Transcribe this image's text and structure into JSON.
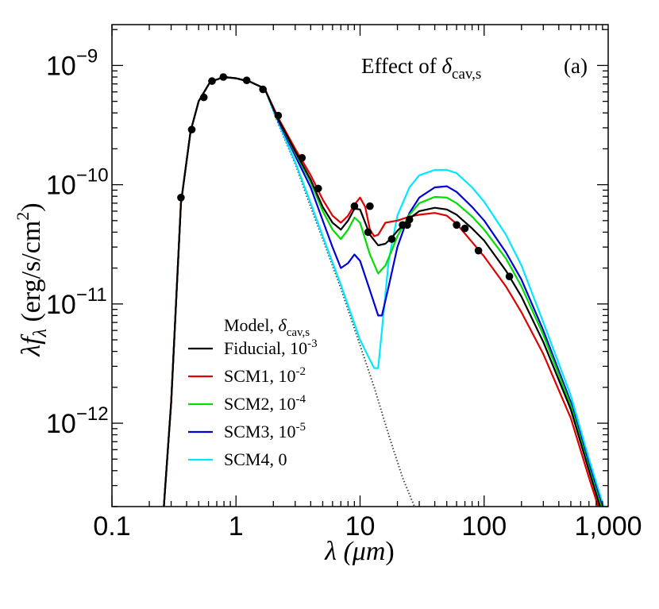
{
  "chart_data": {
    "type": "line",
    "title": "Effect of δcav,s",
    "panel_label": "(a)",
    "xlabel": {
      "prefix": "λ (",
      "unit": "μm",
      "suffix": ")"
    },
    "ylabel": {
      "lambda": "λ",
      "f": "f",
      "f_sub": "λ",
      "units": " (erg/s/cm",
      "units_sup": "2",
      "units_close": ")"
    },
    "x_scale": "log",
    "y_scale": "log",
    "xlim": [
      0.1,
      1000
    ],
    "ylim": [
      2e-13,
      2.2e-09
    ],
    "x_ticks": [
      {
        "value": 0.1,
        "label": "0.1"
      },
      {
        "value": 1,
        "label": "1"
      },
      {
        "value": 10,
        "label": "10"
      },
      {
        "value": 100,
        "label": "100"
      },
      {
        "value": 1000,
        "label": "1,000"
      }
    ],
    "y_ticks": [
      {
        "value": 1e-09,
        "base": "10",
        "exp": "−9"
      },
      {
        "value": 1e-10,
        "base": "10",
        "exp": "−10"
      },
      {
        "value": 1e-11,
        "base": "10",
        "exp": "−11"
      },
      {
        "value": 1e-12,
        "base": "10",
        "exp": "−12"
      }
    ],
    "title_parts": {
      "text": "Effect of ",
      "symbol": "δ",
      "sub": "cav,s"
    },
    "legend": {
      "position": "lower-center",
      "header": {
        "text": "Model, ",
        "symbol": "δ",
        "sub": "cav,s"
      },
      "entries": [
        {
          "name": "Fiducial",
          "base": "10",
          "exp": "-3",
          "color": "#000000"
        },
        {
          "name": "SCM1",
          "base": "10",
          "exp": "-2",
          "color": "#e00000"
        },
        {
          "name": "SCM2",
          "base": "10",
          "exp": "-4",
          "color": "#00dd00"
        },
        {
          "name": "SCM3",
          "base": "10",
          "exp": "-5",
          "color": "#0000dd"
        },
        {
          "name": "SCM4",
          "base": "0",
          "exp": "",
          "color": "#00e8ff"
        }
      ]
    },
    "photospheric": {
      "name": "Stellar photosphere",
      "style": "dotted",
      "color": "#444444",
      "x": [
        0.25,
        0.3,
        0.36,
        0.43,
        0.5,
        0.62,
        0.8,
        1.0,
        1.3,
        1.7,
        2.2,
        3.0,
        4.0,
        5.0,
        7.0,
        10,
        13,
        17,
        22,
        28
      ],
      "y": [
        1e-13,
        1.5e-12,
        7e-11,
        2.8e-10,
        5e-10,
        7.3e-10,
        8e-10,
        7.8e-10,
        7.3e-10,
        6.4e-10,
        3.2e-10,
        1.5e-10,
        6.5e-11,
        3.5e-11,
        1.35e-11,
        4.5e-12,
        2e-12,
        8e-13,
        3.5e-13,
        1.9e-13
      ]
    },
    "series": [
      {
        "name": "SCM4",
        "color": "#00e8ff",
        "x": [
          0.25,
          0.3,
          0.36,
          0.43,
          0.5,
          0.62,
          0.8,
          1.0,
          1.3,
          1.7,
          2.2,
          3.0,
          4.0,
          5.0,
          7.0,
          10,
          12,
          13,
          14,
          15,
          17,
          20,
          25,
          30,
          40,
          50,
          60,
          80,
          100,
          150,
          200,
          300,
          500,
          700,
          1000
        ],
        "y": [
          1e-13,
          1.5e-12,
          7e-11,
          2.8e-10,
          5e-10,
          7.3e-10,
          8e-10,
          7.8e-10,
          7.3e-10,
          6.4e-10,
          3.3e-10,
          1.55e-10,
          7e-11,
          3.7e-11,
          1.45e-11,
          5e-12,
          3.4e-12,
          2.9e-12,
          2.9e-12,
          6e-12,
          2.3e-11,
          5.5e-11,
          9.5e-11,
          1.2e-10,
          1.33e-10,
          1.33e-10,
          1.25e-10,
          9.5e-11,
          7.2e-11,
          3.8e-11,
          2.1e-11,
          7e-12,
          1.7e-12,
          5e-13,
          1.5e-13
        ]
      },
      {
        "name": "SCM3",
        "color": "#0000dd",
        "x": [
          0.25,
          0.3,
          0.36,
          0.43,
          0.5,
          0.62,
          0.8,
          1.0,
          1.3,
          1.7,
          2.2,
          3.0,
          4.0,
          5.0,
          6.0,
          7.0,
          8.0,
          9.0,
          10,
          12,
          14,
          15,
          17,
          20,
          25,
          30,
          40,
          50,
          60,
          80,
          100,
          150,
          200,
          300,
          500,
          700,
          1000
        ],
        "y": [
          1e-13,
          1.5e-12,
          7e-11,
          2.8e-10,
          5e-10,
          7.3e-10,
          8e-10,
          7.8e-10,
          7.3e-10,
          6.4e-10,
          3.4e-10,
          1.75e-10,
          9.5e-11,
          5e-11,
          3e-11,
          2e-11,
          2.2e-11,
          2.6e-11,
          2.3e-11,
          1.3e-11,
          8e-12,
          8e-12,
          1.4e-11,
          3e-11,
          5.8e-11,
          7.8e-11,
          9.5e-11,
          9.7e-11,
          8.7e-11,
          6.5e-11,
          5e-11,
          2.7e-11,
          1.6e-11,
          6e-12,
          1.5e-12,
          4.5e-13,
          1.4e-13
        ]
      },
      {
        "name": "SCM2",
        "color": "#00dd00",
        "x": [
          0.25,
          0.3,
          0.36,
          0.43,
          0.5,
          0.62,
          0.8,
          1.0,
          1.3,
          1.7,
          2.2,
          3.0,
          4.0,
          5.0,
          6.0,
          7.0,
          8.0,
          9.0,
          10,
          12,
          14,
          16,
          18,
          20,
          25,
          30,
          40,
          50,
          60,
          80,
          100,
          150,
          200,
          300,
          500,
          700,
          1000
        ],
        "y": [
          1e-13,
          1.5e-12,
          7e-11,
          2.8e-10,
          5e-10,
          7.3e-10,
          8e-10,
          7.8e-10,
          7.3e-10,
          6.4e-10,
          3.5e-10,
          1.85e-10,
          1.05e-10,
          6e-11,
          4.2e-11,
          3.5e-11,
          4.2e-11,
          5.3e-11,
          4.8e-11,
          2.6e-11,
          1.8e-11,
          2.1e-11,
          2.8e-11,
          3.7e-11,
          5.6e-11,
          7e-11,
          7.9e-11,
          7.8e-11,
          7e-11,
          5.4e-11,
          4.2e-11,
          2.4e-11,
          1.4e-11,
          5.5e-12,
          1.4e-12,
          4.2e-13,
          1.3e-13
        ]
      },
      {
        "name": "SCM1",
        "color": "#e00000",
        "x": [
          0.25,
          0.3,
          0.36,
          0.43,
          0.5,
          0.62,
          0.8,
          1.0,
          1.3,
          1.7,
          2.2,
          3.0,
          4.0,
          5.0,
          6.0,
          7.0,
          8.0,
          9.0,
          10,
          11,
          12,
          13,
          14,
          16,
          20,
          25,
          30,
          40,
          50,
          60,
          80,
          100,
          150,
          200,
          300,
          500,
          700,
          1000
        ],
        "y": [
          1e-13,
          1.5e-12,
          7e-11,
          2.8e-10,
          5e-10,
          7.3e-10,
          8e-10,
          7.8e-10,
          7.3e-10,
          6.4e-10,
          3.6e-10,
          2e-10,
          1.2e-10,
          7.5e-11,
          5.5e-11,
          4.8e-11,
          5.5e-11,
          6.8e-11,
          7.8e-11,
          6.5e-11,
          4.2e-11,
          3.7e-11,
          3.8e-11,
          4.8e-11,
          5e-11,
          5.4e-11,
          5.6e-11,
          5.8e-11,
          5.5e-11,
          4.7e-11,
          3.3e-11,
          2.5e-11,
          1.4e-11,
          8.5e-12,
          3.8e-12,
          1.1e-12,
          3.5e-13,
          1.1e-13
        ]
      },
      {
        "name": "Fiducial",
        "color": "#000000",
        "x": [
          0.25,
          0.3,
          0.36,
          0.43,
          0.5,
          0.62,
          0.8,
          1.0,
          1.3,
          1.7,
          2.2,
          3.0,
          4.0,
          5.0,
          6.0,
          7.0,
          8.0,
          9.0,
          10,
          12,
          14,
          16,
          18,
          20,
          25,
          30,
          40,
          50,
          60,
          80,
          100,
          150,
          200,
          300,
          500,
          700,
          1000
        ],
        "y": [
          1e-13,
          1.5e-12,
          7e-11,
          2.8e-10,
          5e-10,
          7.3e-10,
          8e-10,
          7.8e-10,
          7.3e-10,
          6.4e-10,
          3.5e-10,
          1.9e-10,
          1.1e-10,
          6.5e-11,
          4.8e-11,
          4.2e-11,
          5e-11,
          6.3e-11,
          6.2e-11,
          3.8e-11,
          3.1e-11,
          3.2e-11,
          3.6e-11,
          4.1e-11,
          5.2e-11,
          6e-11,
          6.4e-11,
          6.2e-11,
          5.6e-11,
          4.3e-11,
          3.4e-11,
          1.9e-11,
          1.15e-11,
          4.8e-12,
          1.3e-12,
          4e-13,
          1.2e-13
        ]
      }
    ],
    "observations": {
      "name": "Observed photometry",
      "color": "#000000",
      "x": [
        0.36,
        0.44,
        0.55,
        0.64,
        0.79,
        1.22,
        1.65,
        2.19,
        3.4,
        4.6,
        9.0,
        11.6,
        12.0,
        18.0,
        22.0,
        24.0,
        25.0,
        60.0,
        70.0,
        90.0,
        160.0
      ],
      "y": [
        7.8e-11,
        2.9e-10,
        5.4e-10,
        7.4e-10,
        8e-10,
        7.5e-10,
        6.3e-10,
        3.8e-10,
        1.68e-10,
        9.3e-11,
        6.6e-11,
        4e-11,
        6.6e-11,
        3.5e-11,
        4.6e-11,
        4.6e-11,
        5.1e-11,
        4.6e-11,
        4.3e-11,
        2.8e-11,
        1.7e-11
      ]
    }
  }
}
